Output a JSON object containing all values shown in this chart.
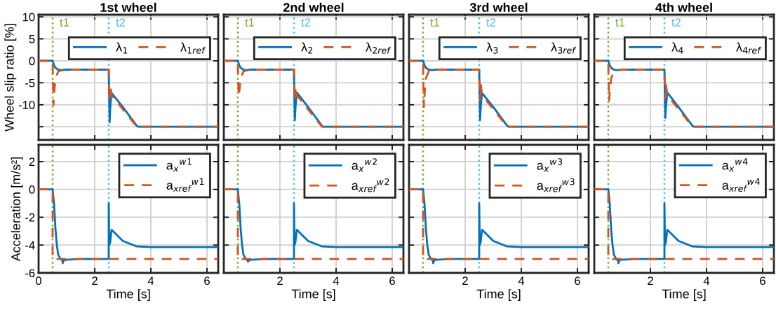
{
  "chart_data": [
    {
      "type": "line",
      "title": "1st wheel",
      "ylabel": "Wheel slip ratio [%]",
      "xlim": [
        0,
        6.4
      ],
      "xticks": [
        0,
        2,
        4,
        6
      ],
      "ylim": [
        -18,
        10.5
      ],
      "yticks": [
        {
          "value": -15,
          "label": null
        },
        -10,
        -5,
        0,
        5,
        10
      ],
      "grid": true,
      "legend": "top right",
      "tick_labels": "y",
      "ref_lines": [
        {
          "axis": "x",
          "value": 0.5,
          "label": "t1",
          "color": "#77ac30",
          "line_style": "dotted"
        },
        {
          "axis": "x",
          "value": 2.5,
          "label": "t2",
          "color": "#4dbeee",
          "line_style": "dotted"
        }
      ],
      "series": [
        {
          "name": "λ$_{1}$",
          "color": "#0072bd",
          "line_style": "solid",
          "x": [
            0,
            0.5,
            0.55,
            0.6,
            0.7,
            0.8,
            1.0,
            2.5,
            2.51,
            2.53,
            2.56,
            2.6,
            3.0,
            3.5,
            3.55,
            6.4
          ],
          "values": [
            0,
            0,
            -1,
            -1.6,
            -2,
            -2.1,
            -2,
            -2,
            -6,
            -14,
            -10,
            -7.3,
            -10.5,
            -14.8,
            -15,
            -15
          ]
        },
        {
          "name": "λ$_{1ref}$",
          "color": "#d95319",
          "line_style": "dashed",
          "x": [
            0,
            0.5,
            0.51,
            0.53,
            0.56,
            0.6,
            0.7,
            0.8,
            1.0,
            2.5,
            2.51,
            2.53,
            2.56,
            2.6,
            3.0,
            3.5,
            3.55,
            6.4
          ],
          "values": [
            0,
            0,
            -5,
            -10,
            -7,
            -4,
            -2.4,
            -2.2,
            -2,
            -2,
            -5,
            -9,
            -5.5,
            -7.8,
            -11,
            -15,
            -15,
            -15
          ]
        }
      ]
    },
    {
      "type": "line",
      "title": "2nd wheel",
      "xlim": [
        0,
        6.4
      ],
      "xticks": [
        0,
        2,
        4,
        6
      ],
      "ylim": [
        -18,
        10.5
      ],
      "yticks": [
        -15,
        -10,
        -5,
        0,
        5,
        10
      ],
      "grid": true,
      "legend": "top right",
      "tick_labels": false,
      "ref_lines": [
        {
          "axis": "x",
          "value": 0.5,
          "label": "t1",
          "color": "#77ac30",
          "line_style": "dotted"
        },
        {
          "axis": "x",
          "value": 2.5,
          "label": "t2",
          "color": "#4dbeee",
          "line_style": "dotted"
        }
      ],
      "series": [
        {
          "name": "λ$_{2}$",
          "color": "#0072bd",
          "line_style": "solid",
          "x": [
            0,
            0.5,
            0.55,
            0.6,
            0.7,
            0.8,
            1.0,
            2.5,
            2.51,
            2.53,
            2.56,
            2.6,
            3.0,
            3.5,
            3.55,
            6.4
          ],
          "values": [
            0,
            0,
            -1,
            -1.6,
            -2,
            -2.1,
            -2,
            -2,
            -6,
            -13.5,
            -10,
            -7.2,
            -10.5,
            -14.8,
            -15,
            -15
          ]
        },
        {
          "name": "λ$_{2ref}$",
          "color": "#d95319",
          "line_style": "dashed",
          "x": [
            0,
            0.5,
            0.51,
            0.53,
            0.56,
            0.6,
            0.7,
            0.8,
            1.0,
            2.5,
            2.51,
            2.53,
            2.56,
            2.6,
            3.0,
            3.5,
            3.55,
            6.4
          ],
          "values": [
            0,
            0,
            -4,
            -8,
            -6.5,
            -4,
            -2.4,
            -2.2,
            -2,
            -2,
            -5,
            -9,
            -6,
            -7.8,
            -11,
            -15,
            -15,
            -15
          ]
        }
      ]
    },
    {
      "type": "line",
      "title": "3rd wheel",
      "xlim": [
        0,
        6.4
      ],
      "xticks": [
        0,
        2,
        4,
        6
      ],
      "ylim": [
        -18,
        10.5
      ],
      "yticks": [
        -15,
        -10,
        -5,
        0,
        5,
        10
      ],
      "grid": true,
      "legend": "top right",
      "tick_labels": false,
      "ref_lines": [
        {
          "axis": "x",
          "value": 0.5,
          "label": "t1",
          "color": "#77ac30",
          "line_style": "dotted"
        },
        {
          "axis": "x",
          "value": 2.5,
          "label": "t2",
          "color": "#4dbeee",
          "line_style": "dotted"
        }
      ],
      "series": [
        {
          "name": "λ$_{3}$",
          "color": "#0072bd",
          "line_style": "solid",
          "x": [
            0,
            0.5,
            0.55,
            0.6,
            0.7,
            0.8,
            1.0,
            2.5,
            2.51,
            2.53,
            2.56,
            2.6,
            3.0,
            3.5,
            3.55,
            6.4
          ],
          "values": [
            0,
            0,
            -1,
            -1.6,
            -2,
            -2.1,
            -2,
            -2,
            -6,
            -13.5,
            -10,
            -7.3,
            -10.5,
            -14.8,
            -15,
            -15
          ]
        },
        {
          "name": "λ$_{3ref}$",
          "color": "#d95319",
          "line_style": "dashed",
          "x": [
            0,
            0.5,
            0.51,
            0.53,
            0.56,
            0.6,
            0.7,
            0.8,
            1.0,
            2.5,
            2.51,
            2.53,
            2.56,
            2.6,
            3.0,
            3.5,
            3.55,
            6.4
          ],
          "values": [
            0,
            0,
            -5,
            -10.5,
            -7,
            -4,
            -2.4,
            -2.2,
            -2,
            -2,
            -5,
            -9,
            -5.5,
            -7.8,
            -11,
            -15,
            -15,
            -15
          ]
        }
      ]
    },
    {
      "type": "line",
      "title": "4th wheel",
      "xlim": [
        0,
        6.4
      ],
      "xticks": [
        0,
        2,
        4,
        6
      ],
      "ylim": [
        -18,
        10.5
      ],
      "yticks": [
        -15,
        -10,
        -5,
        0,
        5,
        10
      ],
      "grid": true,
      "legend": "top right",
      "tick_labels": false,
      "ref_lines": [
        {
          "axis": "x",
          "value": 0.5,
          "label": "t1",
          "color": "#77ac30",
          "line_style": "dotted"
        },
        {
          "axis": "x",
          "value": 2.5,
          "label": "t2",
          "color": "#4dbeee",
          "line_style": "dotted"
        }
      ],
      "series": [
        {
          "name": "λ$_{4}$",
          "color": "#0072bd",
          "line_style": "solid",
          "x": [
            0,
            0.5,
            0.55,
            0.6,
            0.7,
            0.8,
            1.0,
            2.5,
            2.51,
            2.53,
            2.56,
            2.6,
            3.0,
            3.5,
            3.55,
            6.4
          ],
          "values": [
            0,
            0,
            -1,
            -1.6,
            -2,
            -2.1,
            -2,
            -2,
            -6,
            -13,
            -10,
            -7.2,
            -10.5,
            -14.8,
            -15,
            -15
          ]
        },
        {
          "name": "λ$_{4ref}$",
          "color": "#d95319",
          "line_style": "dashed",
          "x": [
            0,
            0.5,
            0.51,
            0.53,
            0.56,
            0.6,
            0.7,
            0.8,
            1.0,
            2.5,
            2.51,
            2.53,
            2.56,
            2.6,
            3.0,
            3.5,
            3.55,
            6.4
          ],
          "values": [
            0,
            0,
            -4.5,
            -9,
            -6.5,
            -4,
            -2.4,
            -2.2,
            -2,
            -2,
            -5,
            -8.5,
            -5.5,
            -7.8,
            -11,
            -15,
            -15,
            -15
          ]
        }
      ]
    },
    {
      "type": "line",
      "xlabel": "Time [s]",
      "ylabel": "Acceleration [m/s²]",
      "xlim": [
        0,
        6.4
      ],
      "xticks": [
        0,
        2,
        4,
        6
      ],
      "ylim": [
        -6,
        3.2
      ],
      "yticks": [
        -6,
        -4,
        -2,
        0,
        2
      ],
      "grid": true,
      "legend": "top right",
      "ref_lines": [
        {
          "axis": "x",
          "value": 0.5,
          "color": "#77ac30",
          "line_style": "dotted"
        },
        {
          "axis": "x",
          "value": 2.5,
          "color": "#4dbeee",
          "line_style": "dotted"
        }
      ],
      "series": [
        {
          "name": "a$_{x}$$^{w}$$^{1}$",
          "color": "#0072bd",
          "line_style": "solid",
          "x": [
            0,
            0.5,
            0.55,
            0.6,
            0.65,
            0.7,
            0.8,
            0.85,
            0.86,
            0.9,
            1.0,
            1.5,
            2.5,
            2.5,
            2.52,
            2.55,
            2.6,
            2.7,
            3.0,
            3.5,
            4.0,
            6.4
          ],
          "values": [
            0,
            0,
            -1,
            -2.8,
            -4,
            -4.7,
            -5.05,
            -5.1,
            -5.3,
            -5.08,
            -5.05,
            -5,
            -5,
            -1,
            -4,
            -3.8,
            -2.9,
            -3.1,
            -3.7,
            -4.1,
            -4.15,
            -4.15
          ]
        },
        {
          "name": "a$_{xref}$$^{w}$$^{1}$",
          "color": "#d95319",
          "line_style": "dashed",
          "x": [
            0,
            0.5,
            0.5,
            6.4
          ],
          "values": [
            0,
            0,
            -5,
            -5
          ]
        }
      ]
    },
    {
      "type": "line",
      "xlabel": "Time [s]",
      "xlim": [
        0,
        6.4
      ],
      "xticks": [
        2,
        4,
        6
      ],
      "ylim": [
        -6,
        3.2
      ],
      "yticks": [
        -6,
        -4,
        -2,
        0,
        2
      ],
      "grid": true,
      "legend": "top right",
      "tick_labels": "x",
      "ref_lines": [
        {
          "axis": "x",
          "value": 0.5,
          "color": "#77ac30",
          "line_style": "dotted"
        },
        {
          "axis": "x",
          "value": 2.5,
          "color": "#4dbeee",
          "line_style": "dotted"
        }
      ],
      "series": [
        {
          "name": "a$_{x}$$^{w}$$^{2}$",
          "color": "#0072bd",
          "line_style": "solid",
          "x": [
            0,
            0.5,
            0.55,
            0.6,
            0.65,
            0.7,
            0.8,
            0.85,
            0.86,
            0.9,
            1.0,
            1.5,
            2.5,
            2.5,
            2.52,
            2.55,
            2.6,
            2.7,
            3.0,
            3.5,
            4.0,
            6.4
          ],
          "values": [
            0,
            0,
            -1,
            -2.8,
            -4,
            -4.7,
            -5.05,
            -5.1,
            -5.2,
            -5.08,
            -5.05,
            -5,
            -5,
            -1,
            -4,
            -3.8,
            -2.9,
            -3.1,
            -3.7,
            -4.1,
            -4.15,
            -4.15
          ]
        },
        {
          "name": "a$_{xref}$$^{w}$$^{2}$",
          "color": "#d95319",
          "line_style": "dashed",
          "x": [
            0,
            0.5,
            0.5,
            6.4
          ],
          "values": [
            0,
            0,
            -5,
            -5
          ]
        }
      ]
    },
    {
      "type": "line",
      "xlabel": "Time [s]",
      "xlim": [
        0,
        6.4
      ],
      "xticks": [
        2,
        4,
        6
      ],
      "ylim": [
        -6,
        3.2
      ],
      "yticks": [
        -6,
        -4,
        -2,
        0,
        2
      ],
      "grid": true,
      "legend": "top right",
      "tick_labels": "x",
      "ref_lines": [
        {
          "axis": "x",
          "value": 0.5,
          "color": "#77ac30",
          "line_style": "dotted"
        },
        {
          "axis": "x",
          "value": 2.5,
          "color": "#4dbeee",
          "line_style": "dotted"
        }
      ],
      "series": [
        {
          "name": "a$_{x}$$^{w}$$^{3}$",
          "color": "#0072bd",
          "line_style": "solid",
          "x": [
            0,
            0.5,
            0.55,
            0.6,
            0.65,
            0.7,
            0.8,
            0.85,
            0.86,
            0.9,
            1.0,
            1.5,
            2.5,
            2.5,
            2.52,
            2.55,
            2.6,
            2.7,
            3.0,
            3.5,
            4.0,
            6.4
          ],
          "values": [
            0,
            0,
            -1,
            -2.8,
            -4,
            -4.7,
            -5.05,
            -5.1,
            -5.3,
            -5.08,
            -5.05,
            -5,
            -5,
            -1,
            -4,
            -3.8,
            -2.9,
            -3.1,
            -3.7,
            -4.1,
            -4.15,
            -4.15
          ]
        },
        {
          "name": "a$_{xref}$$^{w}$$^{3}$",
          "color": "#d95319",
          "line_style": "dashed",
          "x": [
            0,
            0.5,
            0.5,
            6.4
          ],
          "values": [
            0,
            0,
            -5,
            -5
          ]
        }
      ]
    },
    {
      "type": "line",
      "xlabel": "Time [s]",
      "xlim": [
        0,
        6.4
      ],
      "xticks": [
        2,
        4,
        6
      ],
      "ylim": [
        -6,
        3.2
      ],
      "yticks": [
        -6,
        -4,
        -2,
        0,
        2
      ],
      "grid": true,
      "legend": "top right",
      "tick_labels": "x",
      "ref_lines": [
        {
          "axis": "x",
          "value": 0.5,
          "color": "#77ac30",
          "line_style": "dotted"
        },
        {
          "axis": "x",
          "value": 2.5,
          "color": "#4dbeee",
          "line_style": "dotted"
        }
      ],
      "series": [
        {
          "name": "a$_{x}$$^{w}$$^{4}$",
          "color": "#0072bd",
          "line_style": "solid",
          "x": [
            0,
            0.5,
            0.55,
            0.6,
            0.65,
            0.7,
            0.8,
            0.85,
            0.86,
            0.9,
            1.0,
            1.5,
            2.5,
            2.5,
            2.52,
            2.55,
            2.6,
            2.7,
            3.0,
            3.5,
            4.0,
            6.4
          ],
          "values": [
            0,
            0,
            -1,
            -2.8,
            -4,
            -4.7,
            -5.05,
            -5.1,
            -5.3,
            -5.08,
            -5.05,
            -5,
            -5,
            -1,
            -4,
            -3.8,
            -2.9,
            -3.1,
            -3.7,
            -4.1,
            -4.15,
            -4.15
          ]
        },
        {
          "name": "a$_{xref}$$^{w}$$^{4}$",
          "color": "#d95319",
          "line_style": "dashed",
          "x": [
            0,
            0.5,
            0.5,
            6.4
          ],
          "values": [
            0,
            0,
            -5,
            -5
          ]
        }
      ]
    }
  ]
}
